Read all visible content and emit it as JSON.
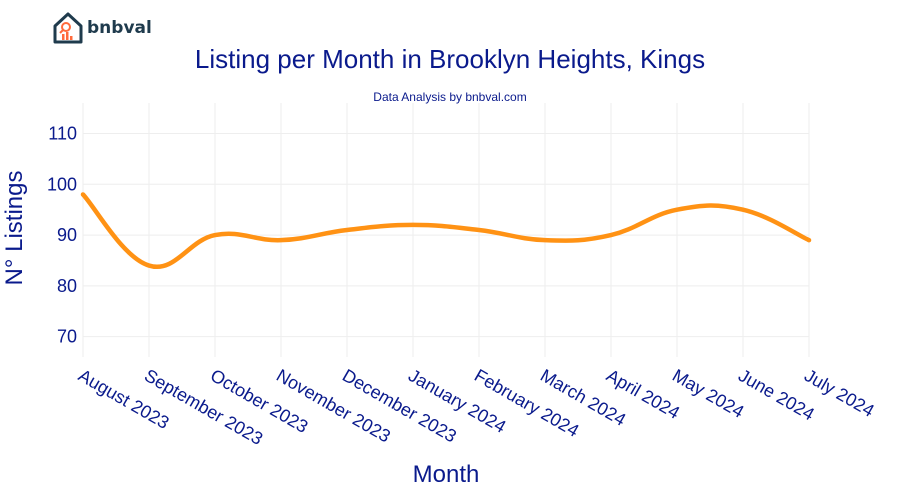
{
  "brand": {
    "name": "bnbval"
  },
  "chart_data": {
    "type": "line",
    "title": "Listing per Month in Brooklyn Heights, Kings",
    "subtitle": "Data Analysis by bnbval.com",
    "xlabel": "Month",
    "ylabel": "N° Listings",
    "categories": [
      "August 2023",
      "September 2023",
      "October 2023",
      "November 2023",
      "December 2023",
      "January 2024",
      "February 2024",
      "March 2024",
      "April 2024",
      "May 2024",
      "June 2024",
      "July 2024"
    ],
    "series": [
      {
        "values": [
          98,
          84,
          90,
          89,
          91,
          92,
          91,
          89,
          90,
          95,
          95,
          89
        ],
        "color": "#ff9214"
      }
    ],
    "ylim": [
      66,
      116
    ],
    "yticks": [
      70,
      80,
      90,
      100,
      110
    ],
    "grid": true,
    "gridColor": "#eeeeee"
  }
}
